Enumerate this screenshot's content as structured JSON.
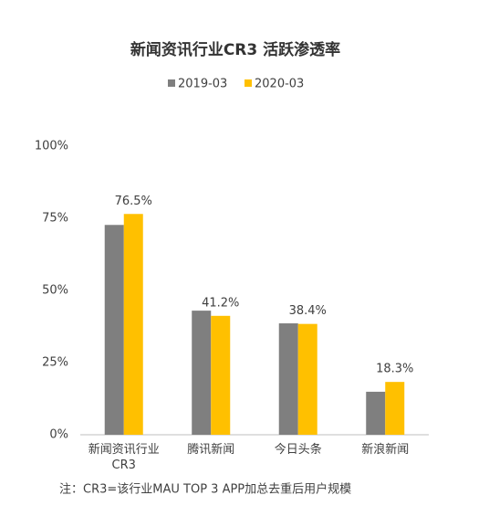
{
  "chart_data": {
    "type": "bar",
    "title": "新闻资讯行业CR3 活跃渗透率",
    "categories": [
      "新闻资讯行业CR3",
      "腾讯新闻",
      "今日头条",
      "新浪新闻"
    ],
    "series": [
      {
        "name": "2019-03",
        "color": "#7f7f7f",
        "values": [
          72.7,
          43.0,
          38.6,
          14.9
        ]
      },
      {
        "name": "2020-03",
        "color": "#ffc000",
        "values": [
          76.5,
          41.2,
          38.4,
          18.3
        ],
        "value_labels": [
          "76.5%",
          "41.2%",
          "38.4%",
          "18.3%"
        ]
      }
    ],
    "ylim": [
      0,
      100
    ],
    "yticks": [
      {
        "value": 0,
        "label": "0%"
      },
      {
        "value": 25,
        "label": "25%"
      },
      {
        "value": 50,
        "label": "50%"
      },
      {
        "value": 75,
        "label": "75%"
      },
      {
        "value": 100,
        "label": "100%"
      }
    ],
    "grid": false,
    "note": "注：CR3=该行业MAU TOP 3 APP加总去重后用户规模"
  }
}
